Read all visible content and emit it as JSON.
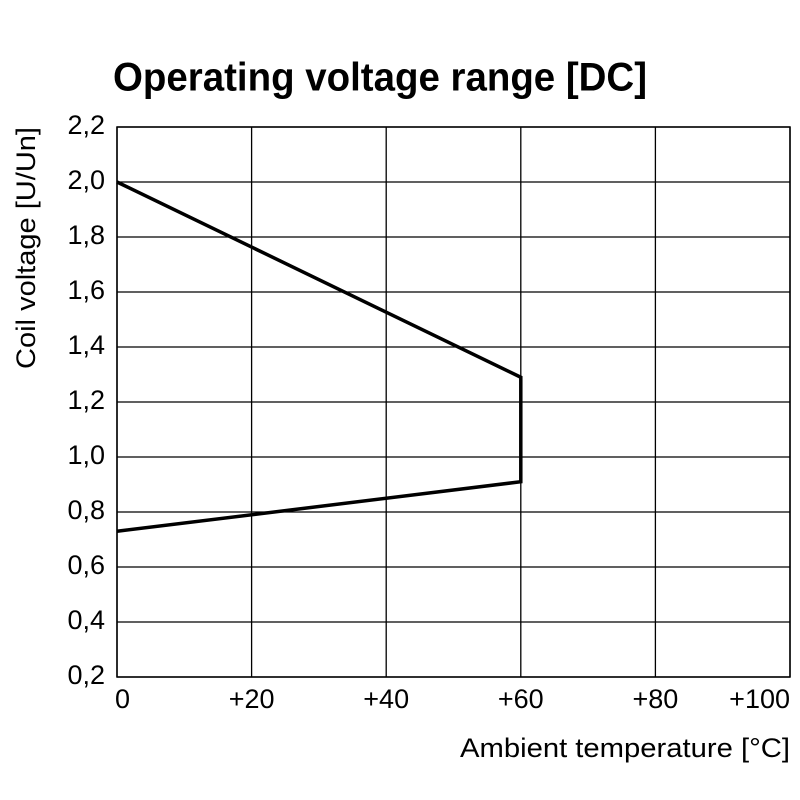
{
  "chart_data": {
    "type": "line",
    "title": "Operating voltage range [DC]",
    "xlabel": "Ambient temperature [°C]",
    "ylabel": "Coil voltage [U/Un]",
    "x": [
      0,
      60,
      60,
      0
    ],
    "values": [
      2.0,
      1.29,
      0.91,
      0.73
    ],
    "color": "#000000",
    "xlim": [
      0,
      100
    ],
    "xticks": [
      0,
      {
        "value": 20,
        "label": "+20"
      },
      {
        "value": 40,
        "label": "+40"
      },
      {
        "value": 60,
        "label": "+60"
      },
      {
        "value": 80,
        "label": "+80"
      },
      {
        "value": 100,
        "label": "+100"
      }
    ],
    "ylim": [
      0.2,
      2.2
    ],
    "yticks": [
      {
        "value": 0.2,
        "label": "0,2"
      },
      {
        "value": 0.4,
        "label": "0,4"
      },
      {
        "value": 0.6,
        "label": "0,6"
      },
      {
        "value": 0.8,
        "label": "0,8"
      },
      {
        "value": 1.0,
        "label": "1,0"
      },
      {
        "value": 1.2,
        "label": "1,2"
      },
      {
        "value": 1.4,
        "label": "1,4"
      },
      {
        "value": 1.6,
        "label": "1,6"
      },
      {
        "value": 1.8,
        "label": "1,8"
      },
      {
        "value": 2.0,
        "label": "2,0"
      },
      {
        "value": 2.2,
        "label": "2,2"
      }
    ],
    "grid": true
  }
}
